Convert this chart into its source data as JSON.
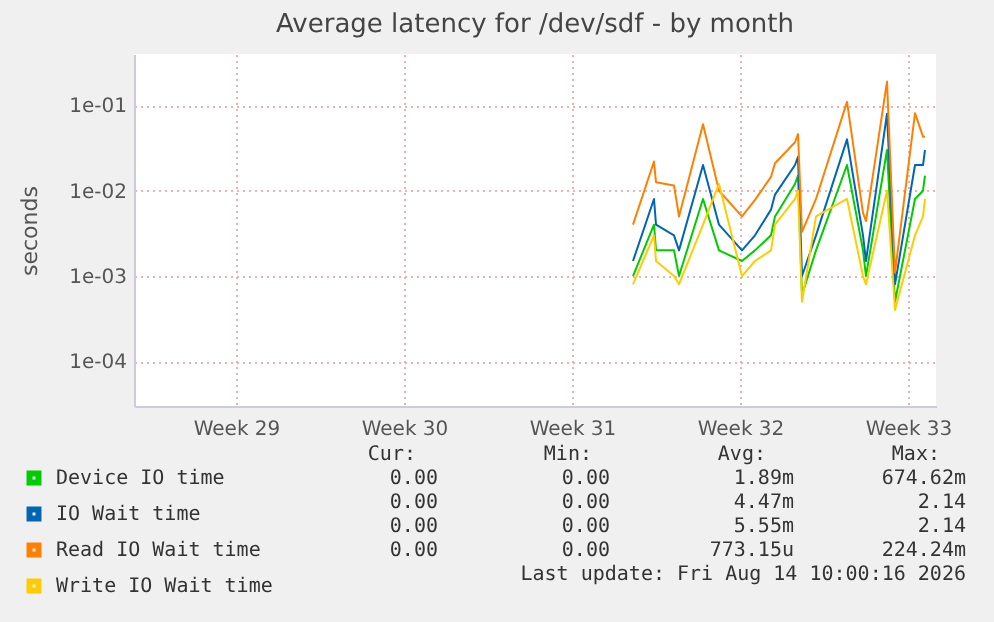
{
  "chart_data": {
    "type": "line",
    "title": "Average latency for /dev/sdf - by month",
    "ylabel": "seconds",
    "log": "y",
    "grid": true,
    "legend": "bottom left",
    "line_style": "solid",
    "x": [
      "2026-08-02T01:00",
      "2026-08-02T22:00",
      "2026-08-03T00:00",
      "2026-08-03T18:00",
      "2026-08-03T23:00",
      "2026-08-04T23:00",
      "2026-08-05T15:00",
      "2026-08-06T14:00",
      "2026-08-07T03:00",
      "2026-08-07T19:00",
      "2026-08-07T23:00",
      "2026-08-08T19:00",
      "2026-08-08T22:00",
      "2026-08-09T02:00",
      "2026-08-09T16:00",
      "2026-08-10T23:00",
      "2026-08-11T15:00",
      "2026-08-11T18:00",
      "2026-08-12T15:00",
      "2026-08-12T23:00",
      "2026-08-13T19:00",
      "2026-08-14T03:00",
      "2026-08-14T05:00"
    ],
    "xlim": [
      "2026-07-12T06:00",
      "2026-08-14T16:00"
    ],
    "xticks": [
      {
        "value": "2026-07-16T12:00",
        "label": "Week 29"
      },
      {
        "value": "2026-07-23T12:00",
        "label": "Week 30"
      },
      {
        "value": "2026-07-30T12:00",
        "label": "Week 31"
      },
      {
        "value": "2026-08-06T12:00",
        "label": "Week 32"
      },
      {
        "value": "2026-08-13T12:00",
        "label": "Week 33"
      }
    ],
    "ylim": [
      3e-05,
      0.4
    ],
    "yticks": [
      {
        "value": 0.0001,
        "label": "1e-04"
      },
      {
        "value": 0.001,
        "label": "1e-03"
      },
      {
        "value": 0.01,
        "label": "1e-02"
      },
      {
        "value": 0.1,
        "label": "1e-01"
      }
    ],
    "series": [
      {
        "name": "Device IO time",
        "color": "#00cc00",
        "values": [
          0.001,
          0.004,
          0.002,
          0.002,
          0.001,
          0.008,
          0.002,
          0.0015,
          0.002,
          0.003,
          0.005,
          0.012,
          0.015,
          0.0006,
          0.002,
          0.02,
          0.002,
          0.001,
          0.03,
          0.0005,
          0.008,
          0.01,
          0.015
        ]
      },
      {
        "name": "IO Wait time",
        "color": "#0066b3",
        "values": [
          0.0015,
          0.008,
          0.004,
          0.003,
          0.002,
          0.02,
          0.004,
          0.002,
          0.003,
          0.006,
          0.009,
          0.02,
          0.025,
          0.001,
          0.003,
          0.04,
          0.003,
          0.0015,
          0.08,
          0.0008,
          0.02,
          0.02,
          0.03
        ]
      },
      {
        "name": "Read IO Wait time",
        "color": "#ff8000",
        "values": [
          0.004,
          0.022,
          0.0126,
          0.0115,
          0.005,
          0.06,
          0.01,
          0.005,
          0.0078,
          0.0145,
          0.021,
          0.037,
          0.046,
          0.0033,
          0.008,
          0.11,
          0.0055,
          0.0044,
          0.19,
          0.0011,
          0.081,
          0.043,
          0.043
        ]
      },
      {
        "name": "Write IO Wait time",
        "color": "#ffcc00",
        "values": [
          0.0008,
          0.003,
          0.0015,
          0.001,
          0.0008,
          0.004,
          0.012,
          0.001,
          0.0015,
          0.002,
          0.004,
          0.008,
          0.01,
          0.0005,
          0.005,
          0.008,
          0.001,
          0.0008,
          0.01,
          0.0004,
          0.003,
          0.005,
          0.008
        ]
      }
    ],
    "annotations": [
      "Cur:",
      "Min:",
      "Avg:",
      "Max:",
      "0.00",
      "0.00",
      "1.89m",
      "674.62m",
      "0.00",
      "0.00",
      "4.47m",
      "2.14",
      "0.00",
      "0.00",
      "5.55m",
      "2.14",
      "0.00",
      "0.00",
      "773.15u",
      "224.24m",
      "Last update: Fri Aug 14 10:00:16 2026"
    ]
  }
}
